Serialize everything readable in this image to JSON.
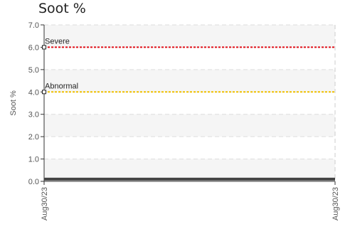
{
  "title": "Soot %",
  "chart_data": {
    "type": "line",
    "title": "Soot %",
    "xlabel": "",
    "ylabel": "Soot %",
    "ylim": [
      0,
      7
    ],
    "y_ticks": [
      "0.0",
      "1.0",
      "2.0",
      "3.0",
      "4.0",
      "5.0",
      "6.0",
      "7.0"
    ],
    "x_ticks": [
      "Aug30/23",
      "Aug30/23"
    ],
    "grid": true,
    "series": [
      {
        "values": [
          0.1,
          0.1
        ],
        "color": "#444444"
      }
    ],
    "thresholds": [
      {
        "name": "Severe",
        "value": 6.0,
        "color": "#e0101a"
      },
      {
        "name": "Abnormal",
        "value": 4.0,
        "color": "#f0c000"
      }
    ]
  }
}
